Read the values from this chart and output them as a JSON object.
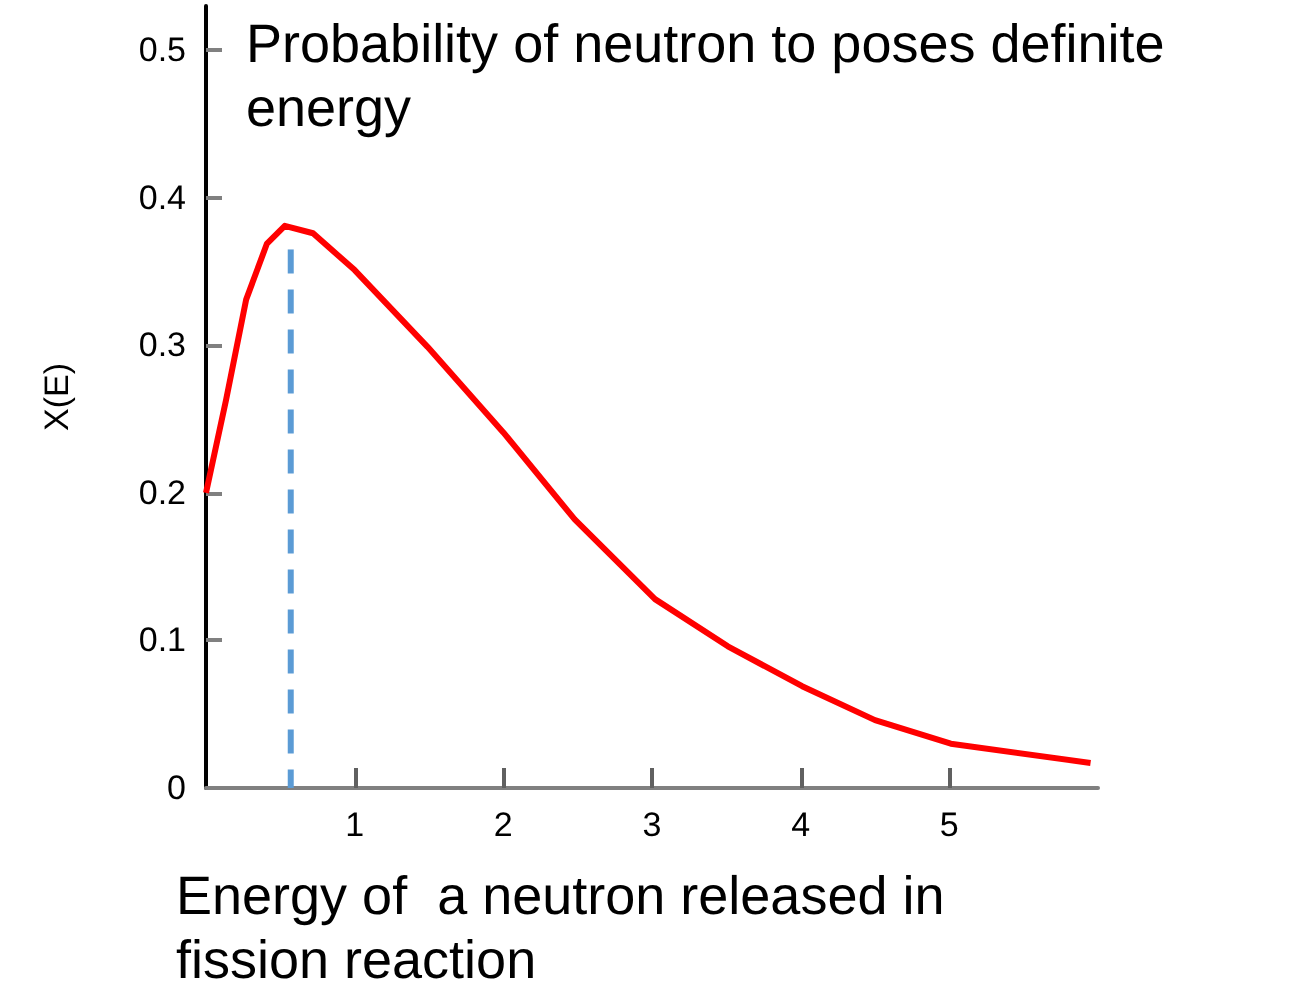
{
  "chart_data": {
    "type": "line",
    "xlabel": "Energy of  a neutron released in fission reaction",
    "ylabel": "X(E)",
    "annotations": [
      "Probability of neutron to poses definite energy"
    ],
    "series": [
      {
        "color": "#ff0000",
        "line_style": "solid",
        "x": [
          0,
          0.135,
          0.27,
          0.41,
          0.53,
          0.72,
          1,
          1.49,
          2,
          2.48,
          3.02,
          3.51,
          4.01,
          4.5,
          5.01,
          5.95
        ],
        "values": [
          0.2,
          0.263,
          0.331,
          0.369,
          0.381,
          0.376,
          0.351,
          0.299,
          0.241,
          0.182,
          0.128,
          0.096,
          0.069,
          0.046,
          0.03,
          0.017
        ]
      },
      {
        "color": "#5b9bd5",
        "line_style": "dashed",
        "x": [
          0.57,
          0.57
        ],
        "values": [
          0.365,
          0
        ]
      }
    ],
    "xlim": [
      0,
      6
    ],
    "xticks": [
      1,
      2,
      3,
      4,
      5
    ],
    "ylim": [
      0,
      0.53
    ],
    "yticks": [
      0,
      0.1,
      0.2,
      0.3,
      0.4,
      0.5
    ],
    "grid": false,
    "marker": "none"
  }
}
